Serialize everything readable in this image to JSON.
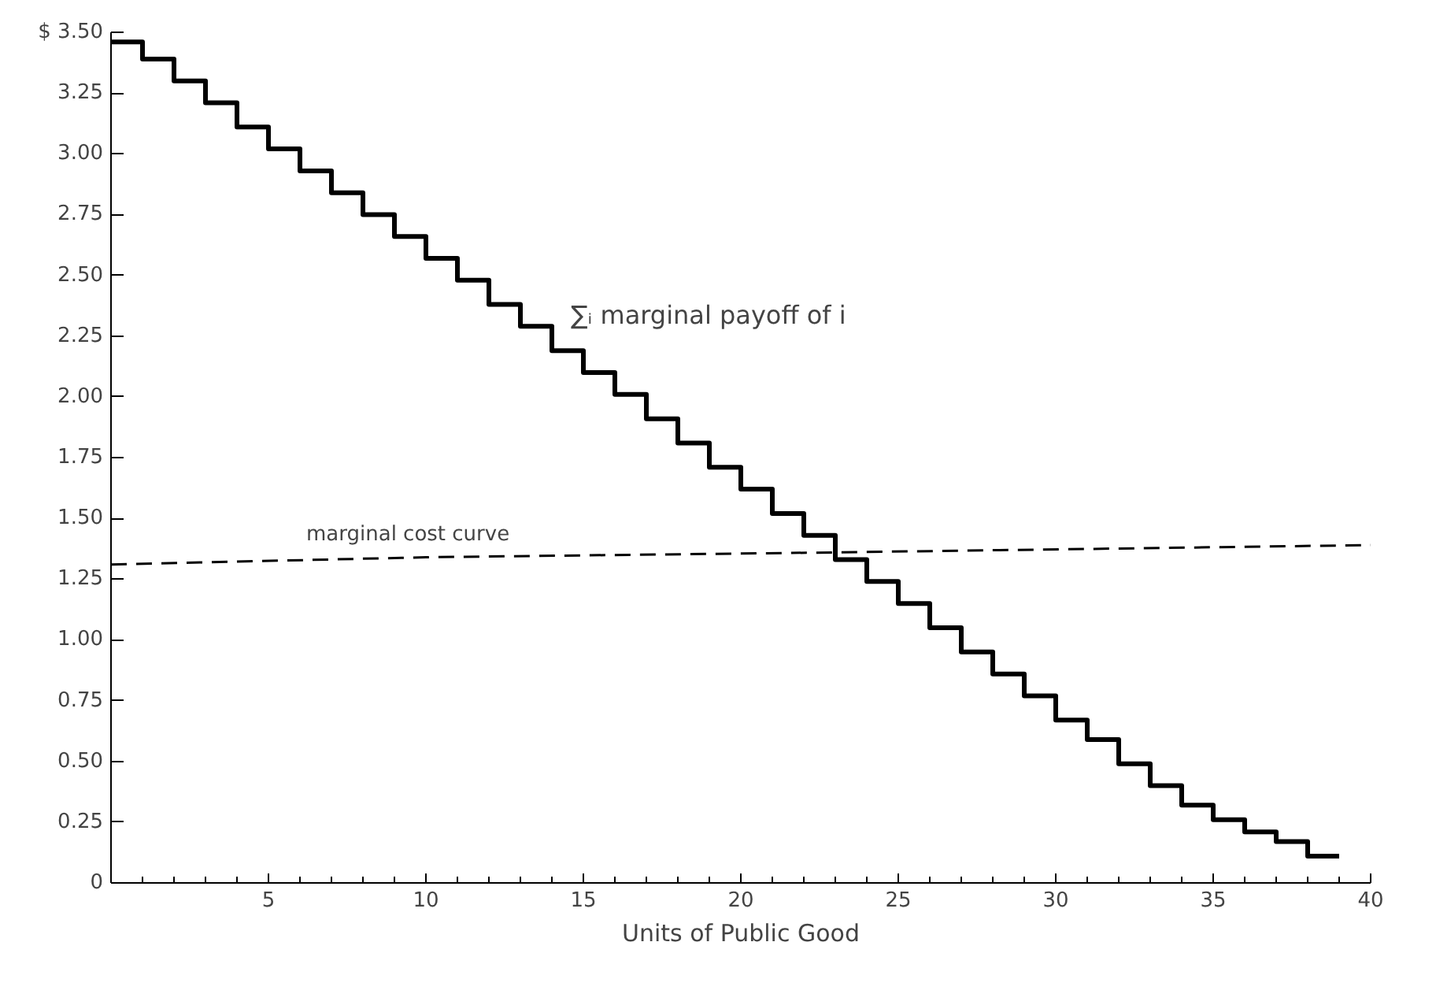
{
  "chart_data": {
    "type": "step",
    "xlabel": "Units of Public Good",
    "xlim": [
      0,
      40
    ],
    "xticks": [
      {
        "value": 0,
        "label": null
      },
      5,
      10,
      15,
      20,
      25,
      30,
      35,
      40
    ],
    "ylim": [
      0,
      3.5
    ],
    "yticks": [
      0,
      0.25,
      {
        "value": 0.5,
        "label": "0.50"
      },
      0.75,
      {
        "value": 1,
        "label": "1.00"
      },
      1.25,
      {
        "value": 1.5,
        "label": "1.50"
      },
      1.75,
      {
        "value": 2,
        "label": "2.00"
      },
      2.25,
      {
        "value": 2.5,
        "label": "2.50"
      },
      2.75,
      {
        "value": 3,
        "label": "3.00"
      },
      3.25,
      {
        "value": 3.5,
        "label": "$ 3.50"
      }
    ],
    "grid": false,
    "series": [
      {
        "color": "#000000",
        "line_style": "solid",
        "x": [
          0,
          1,
          2,
          3,
          4,
          5,
          6,
          7,
          8,
          9,
          10,
          11,
          12,
          13,
          14,
          15,
          16,
          17,
          18,
          19,
          20,
          21,
          22,
          23,
          24,
          25,
          26,
          27,
          28,
          29,
          30,
          31,
          32,
          33,
          34,
          35,
          36,
          37,
          38,
          39
        ],
        "values": [
          3.46,
          3.46,
          3.39,
          3.3,
          3.21,
          3.11,
          3.02,
          2.93,
          2.84,
          2.75,
          2.66,
          2.57,
          2.48,
          2.38,
          2.29,
          2.19,
          2.1,
          2.01,
          1.91,
          1.81,
          1.71,
          1.62,
          1.52,
          1.43,
          1.33,
          1.24,
          1.15,
          1.05,
          0.95,
          0.86,
          0.77,
          0.67,
          0.59,
          0.49,
          0.4,
          0.32,
          0.26,
          0.21,
          0.17,
          0.11
        ]
      },
      {
        "type": "line",
        "color": "#000000",
        "line_style": "dashed",
        "x": [
          0,
          10,
          23,
          40
        ],
        "values": [
          1.31,
          1.34,
          1.36,
          1.39
        ]
      }
    ],
    "annotations": [
      "∑ᵢ marginal payoff of i",
      "marginal cost curve"
    ]
  }
}
